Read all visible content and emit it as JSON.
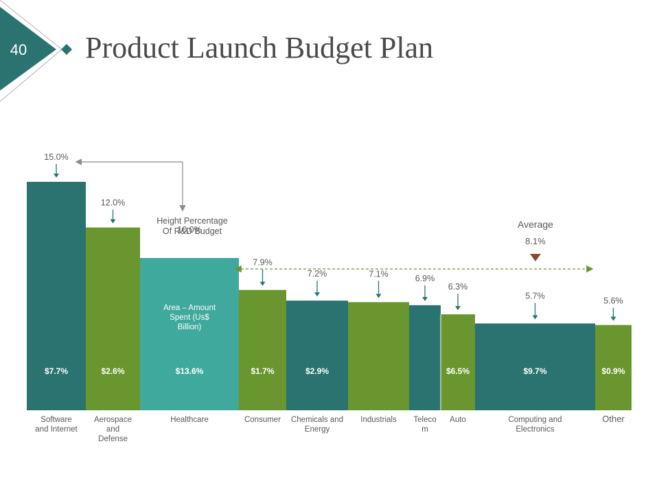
{
  "slide": {
    "number": "40",
    "title": "Product Launch Budget Plan"
  },
  "colors": {
    "dark_teal": "#2a7370",
    "olive": "#6a962f",
    "light_teal": "#3fa99d",
    "accent_brown": "#8a4a2e",
    "text": "#595959"
  },
  "chart_data": {
    "type": "bar",
    "subtype": "variable-width (marimekko-style)",
    "title": "",
    "ylabel": "Height Percentage Of R&D Budget",
    "area_meaning": "Area – Amount Spent (Us$ Billion)",
    "ylim": [
      0,
      15
    ],
    "categories": [
      "Software and Internet",
      "Aerospace and Defense",
      "Healthcare",
      "Consumer",
      "Chemicals and Energy",
      "Industrials",
      "Telecom",
      "Auto",
      "Computing and Electronics",
      "Other"
    ],
    "category_labels": [
      [
        "Software",
        "and Internet"
      ],
      [
        "Aerospace",
        "and",
        "Defense"
      ],
      [
        "Healthcare"
      ],
      [
        "Consumer"
      ],
      [
        "Chemicals and",
        "Energy"
      ],
      [
        "Industrials"
      ],
      [
        "Teleco",
        "m"
      ],
      [
        "Auto"
      ],
      [
        "Computing and",
        "Electronics"
      ],
      [
        "Other"
      ]
    ],
    "values": [
      15.0,
      12.0,
      10.0,
      7.9,
      7.2,
      7.1,
      6.9,
      6.3,
      5.7,
      5.6
    ],
    "value_labels": [
      "15.0%",
      "12.0%",
      "10.0%",
      "7.9%",
      "7.2%",
      "7.1%",
      "6.9%",
      "6.3%",
      "5.7%",
      "5.6%"
    ],
    "amounts": [
      7.7,
      2.6,
      13.6,
      1.7,
      2.9,
      null,
      null,
      6.5,
      9.7,
      0.9
    ],
    "amount_labels": [
      "$7.7%",
      "$2.6%",
      "$13.6%",
      "$1.7%",
      "$2.9%",
      "",
      "",
      "$6.5%",
      "$9.7%",
      "$0.9%"
    ],
    "bar_colors": [
      "dark_teal",
      "olive",
      "light_teal",
      "olive",
      "dark_teal",
      "olive",
      "dark_teal",
      "olive",
      "dark_teal",
      "olive"
    ],
    "average": {
      "label": "Average",
      "value": 8.1,
      "value_label": "8.1%"
    },
    "annotations": {
      "height_label": [
        "Height Percentage",
        "Of R&D Budget"
      ],
      "area_label": [
        "Area – Amount",
        "Spent (Us$",
        "Billion)"
      ]
    }
  }
}
